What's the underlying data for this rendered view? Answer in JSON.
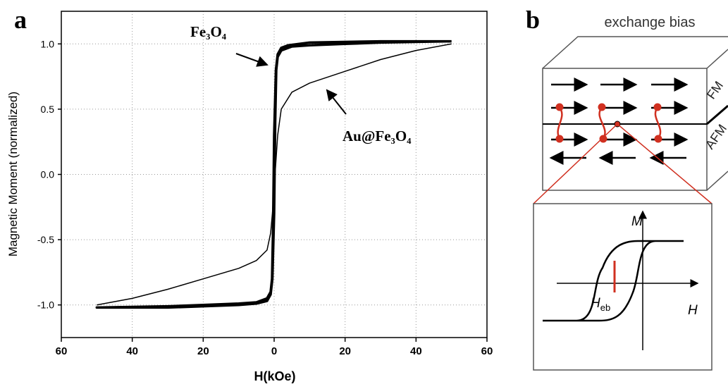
{
  "panel_labels": [
    "a",
    "b"
  ],
  "chart_data": {
    "type": "line",
    "xlabel": "H(kOe)",
    "ylabel": "Magnetic Moment (normalized)",
    "xlim": [
      -60,
      60
    ],
    "ylim": [
      -1.25,
      1.25
    ],
    "xticks": [
      {
        "value": -60,
        "label": "60"
      },
      {
        "value": -40,
        "label": "40"
      },
      {
        "value": -20,
        "label": "20"
      },
      0,
      20,
      40,
      60
    ],
    "yticks": [
      {
        "value": -1,
        "label": "-1.0"
      },
      -0.5,
      {
        "value": 0,
        "label": "0.0"
      },
      0.5,
      {
        "value": 1,
        "label": "1.0"
      }
    ],
    "grid": true,
    "series": [
      {
        "name": "Fe₃O₄",
        "color": "#000000",
        "linewidth": 3.5,
        "x": [
          50,
          30,
          10,
          4,
          2,
          1,
          0.5,
          0,
          -0.3,
          -0.6,
          -1,
          -2,
          -5,
          -10,
          -20,
          -30,
          -50,
          -30,
          -20,
          -10,
          -5,
          -2,
          -1,
          -0.5,
          0,
          0.3,
          0.6,
          1,
          2,
          5,
          10,
          20,
          30,
          50
        ],
        "values": [
          1.02,
          1.02,
          1.01,
          0.99,
          0.97,
          0.92,
          0.8,
          0.3,
          -0.4,
          -0.8,
          -0.9,
          -0.95,
          -0.98,
          -0.99,
          -1.0,
          -1.01,
          -1.02,
          -1.02,
          -1.01,
          -1.0,
          -0.99,
          -0.97,
          -0.92,
          -0.8,
          -0.3,
          0.4,
          0.8,
          0.9,
          0.95,
          0.98,
          0.99,
          1.0,
          1.01,
          1.02
        ]
      },
      {
        "name": "Au@Fe₃O₄",
        "color": "#000000",
        "linewidth": 1.5,
        "x": [
          50,
          40,
          30,
          20,
          10,
          5,
          2,
          1,
          0.5,
          0,
          -0.5,
          -1,
          -2,
          -5,
          -10,
          -20,
          -30,
          -40,
          -50
        ],
        "values": [
          1.0,
          0.95,
          0.88,
          0.79,
          0.7,
          0.63,
          0.5,
          0.3,
          0.1,
          -0.1,
          -0.3,
          -0.45,
          -0.58,
          -0.66,
          -0.72,
          -0.8,
          -0.88,
          -0.95,
          -1.0
        ]
      }
    ]
  },
  "diagram": {
    "title": "exchange bias",
    "fm_label": "FM",
    "afm_label": "AFM",
    "m_axis": "M",
    "h_axis": "H",
    "heb_symbol": "H",
    "heb_subscript": "eb"
  }
}
